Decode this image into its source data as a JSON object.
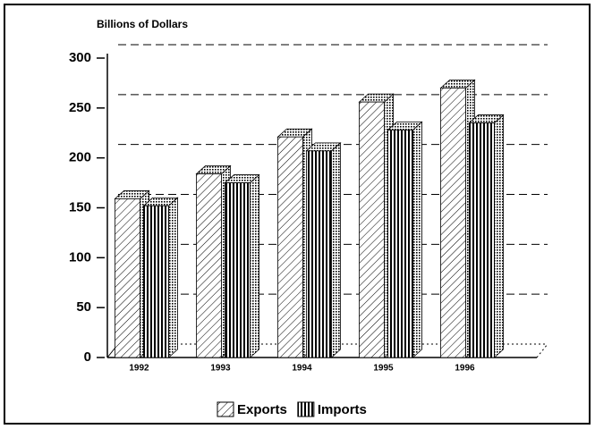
{
  "chart_data": {
    "type": "bar3d",
    "title": "Billions of Dollars",
    "categories": [
      "1992",
      "1993",
      "1994",
      "1995",
      "1996"
    ],
    "series": [
      {
        "name": "Exports",
        "values": [
          159,
          184,
          221,
          256,
          270
        ]
      },
      {
        "name": "Imports",
        "values": [
          152,
          175,
          207,
          228,
          235
        ]
      }
    ],
    "ylim": [
      0,
      300
    ],
    "yticks": [
      0,
      50,
      100,
      150,
      200,
      250,
      300
    ],
    "grid": true,
    "legend": "bottom"
  }
}
